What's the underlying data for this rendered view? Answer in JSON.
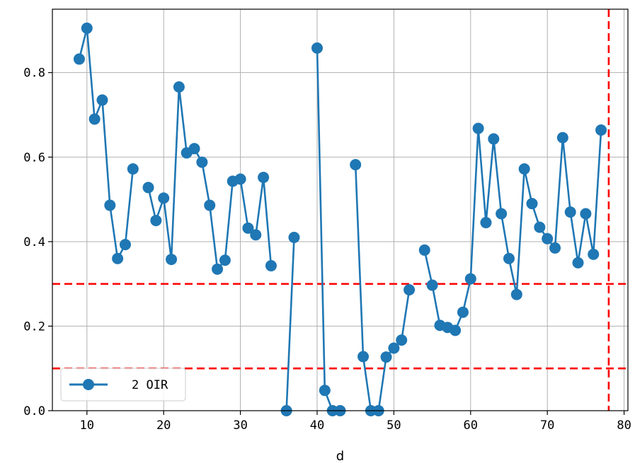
{
  "chart_data": {
    "type": "line",
    "xlabel": "d",
    "ylabel": "",
    "xlim": [
      5.5,
      80.5
    ],
    "ylim": [
      0.0,
      0.95
    ],
    "x_ticks": [
      10,
      20,
      30,
      40,
      50,
      60,
      70,
      80
    ],
    "x_tick_labels": [
      "10",
      "20",
      "30",
      "40",
      "50",
      "60",
      "70",
      "80"
    ],
    "y_ticks": [
      0.0,
      0.2,
      0.4,
      0.6,
      0.8
    ],
    "y_tick_labels": [
      "0.0",
      "0.2",
      "0.4",
      "0.6",
      "0.8"
    ],
    "grid": true,
    "legend_position": "lower-left",
    "series": [
      {
        "name": "2 OIR",
        "color": "#1f77b4",
        "marker": "circle",
        "x": [
          9,
          10,
          11,
          12,
          13,
          14,
          15,
          16,
          18,
          19,
          20,
          21,
          22,
          23,
          24,
          25,
          26,
          27,
          28,
          29,
          30,
          31,
          32,
          33,
          34,
          36,
          37,
          40,
          41,
          42,
          43,
          45,
          46,
          47,
          48,
          49,
          50,
          51,
          52,
          54,
          55,
          56,
          57,
          58,
          59,
          60,
          61,
          62,
          63,
          64,
          65,
          66,
          67,
          68,
          69,
          70,
          71,
          72,
          73,
          74,
          75,
          76,
          77
        ],
        "y": [
          0.832,
          0.905,
          0.69,
          0.735,
          0.486,
          0.36,
          0.393,
          0.572,
          0.528,
          0.45,
          0.503,
          0.358,
          0.766,
          0.61,
          0.62,
          0.588,
          0.486,
          0.335,
          0.356,
          0.543,
          0.548,
          0.432,
          0.416,
          0.552,
          0.343,
          0.0,
          0.41,
          0.858,
          0.048,
          0.0,
          0.0,
          0.582,
          0.128,
          0.0,
          0.0,
          0.127,
          0.148,
          0.167,
          0.286,
          0.38,
          0.297,
          0.202,
          0.197,
          0.19,
          0.233,
          0.312,
          0.668,
          0.445,
          0.643,
          0.466,
          0.36,
          0.275,
          0.572,
          0.49,
          0.434,
          0.407,
          0.385,
          0.646,
          0.47,
          0.35,
          0.466,
          0.37,
          0.664
        ],
        "segment_breaks_before": [
          18,
          36,
          40,
          45,
          54
        ]
      }
    ],
    "reference_lines": [
      {
        "orientation": "horizontal",
        "value": 0.3,
        "color": "#ff0000",
        "style": "dashed"
      },
      {
        "orientation": "horizontal",
        "value": 0.1,
        "color": "#ff0000",
        "style": "dashed"
      },
      {
        "orientation": "vertical",
        "value": 78,
        "color": "#ff0000",
        "style": "dashed"
      }
    ]
  }
}
